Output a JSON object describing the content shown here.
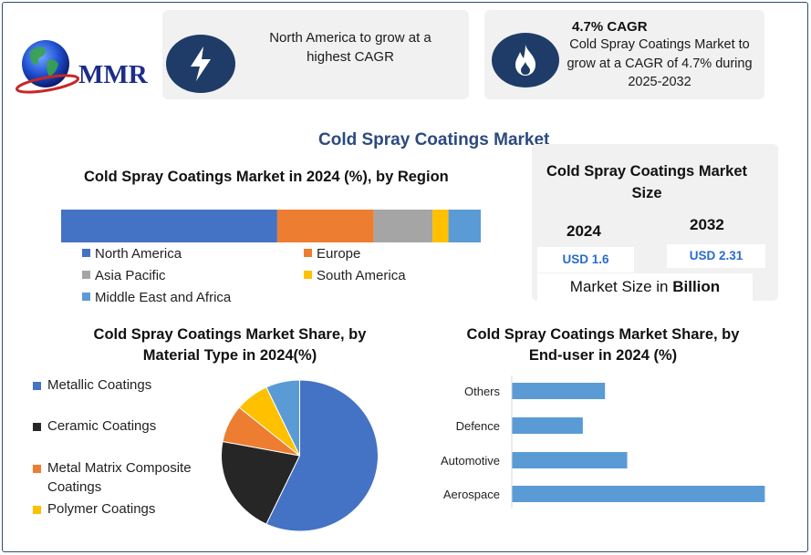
{
  "logo": {
    "text": "MMR"
  },
  "highlights": {
    "region": {
      "text": "North America to grow at a highest CAGR"
    },
    "cagr": {
      "title": "4.7% CAGR",
      "text": "Cold Spray Coatings Market to grow at a CAGR of 4.7% during 2025-2032"
    }
  },
  "main_title": "Cold Spray Coatings Market",
  "market_size": {
    "title": "Cold Spray Coatings Market Size",
    "year1": "2024",
    "year2": "2032",
    "value1": "USD 1.6",
    "value2": "USD 2.31",
    "note_prefix": "Market Size in ",
    "note_bold": "Billion"
  },
  "colors": {
    "north_america": "#4472c4",
    "europe": "#ed7d31",
    "asia_pacific": "#a5a5a5",
    "south_america": "#ffc000",
    "mea": "#5b9bd5",
    "ceramic": "#262626",
    "metal_matrix": "#ed7d31",
    "polymer": "#ffc000",
    "bar_blue": "#5b9bd5",
    "icon_bg": "#1f3c68"
  },
  "icons": [
    "lightning-icon",
    "flame-icon",
    "globe-icon"
  ],
  "chart_data": [
    {
      "type": "bar",
      "orientation": "horizontal-stacked",
      "title": "Cold Spray Coatings Market in 2024 (%), by Region",
      "categories": [
        "North America",
        "Europe",
        "Asia Pacific",
        "South America",
        "Middle East and Africa"
      ],
      "values": [
        51.5,
        23.0,
        14.0,
        3.8,
        7.7
      ],
      "unit": "%",
      "xlim": [
        0,
        100
      ],
      "legend": "bottom"
    },
    {
      "type": "pie",
      "title": "Cold Spray Coatings Market Share, by Material Type in 2024(%)",
      "categories": [
        "Metallic Coatings",
        "Ceramic Coatings",
        "Metal Matrix Composite Coatings",
        "Polymer Coatings",
        "Others"
      ],
      "values": [
        57,
        21,
        8,
        7,
        7
      ],
      "unit": "%",
      "legend": "left"
    },
    {
      "type": "bar",
      "orientation": "horizontal",
      "title": "Cold Spray Coatings Market Share, by End-user in 2024 (%)",
      "categories": [
        "Others",
        "Defence",
        "Automotive",
        "Aerospace"
      ],
      "values": [
        21,
        16,
        26,
        57
      ],
      "unit": "%",
      "xlim": [
        0,
        60
      ]
    }
  ]
}
